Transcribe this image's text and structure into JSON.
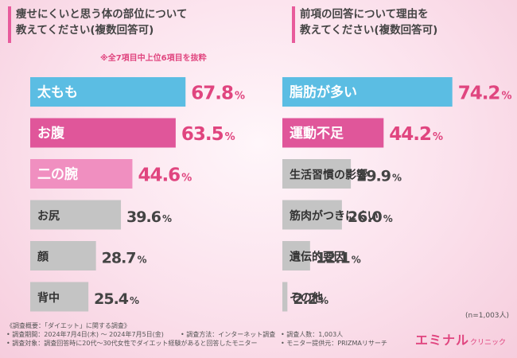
{
  "question_left": "痩せにくいと思う体の部位について\n教えてください(複数回答可)",
  "question_right": "前項の回答について理由を\n教えてください(複数回答可)",
  "note_top": "※全7項目中上位6項目を抜粋",
  "respondents_note": "(n=1,003人)",
  "survey": {
    "title": "《調査概要：「ダイエット」に関する調査》",
    "period": "• 調査期間：2024年7月4日(木) ～ 2024年7月5日(金)",
    "target": "• 調査対象：調査回答時に20代～30代女性でダイエット経験があると回答したモニター",
    "method": "• 調査方法：インターネット調査",
    "count": "• 調査人数：1,003人",
    "provider": "• モニター提供元：PRIZMAリサーチ"
  },
  "logo": {
    "main": "エミナル",
    "sub": "クリニック"
  },
  "colors": {
    "blue": "#5bbde3",
    "pink": "#e0569a",
    "light_pink": "#f08fc0",
    "gray": "#c4c4c4",
    "value_pink": "#e0457f"
  },
  "chart_data": [
    {
      "type": "bar",
      "orientation": "horizontal",
      "title": "痩せにくいと思う体の部位について教えてください(複数回答可)",
      "categories": [
        "太もも",
        "お腹",
        "二の腕",
        "お尻",
        "顔",
        "背中"
      ],
      "values": [
        67.8,
        63.5,
        44.6,
        39.6,
        28.7,
        25.4
      ],
      "value_labels": [
        "67.8",
        "63.5",
        "44.6",
        "39.6",
        "28.7",
        "25.4"
      ],
      "unit": "%",
      "xlim": [
        0,
        100
      ],
      "bar_styles": [
        "blue",
        "pink",
        "light_pink",
        "gray",
        "gray",
        "gray"
      ]
    },
    {
      "type": "bar",
      "orientation": "horizontal",
      "title": "前項の回答について理由を教えてください(複数回答可)",
      "categories": [
        "脂肪が多い",
        "運動不足",
        "生活習慣の影響",
        "筋肉がつきにくい",
        "遺伝的要因",
        "その他"
      ],
      "values": [
        74.2,
        44.2,
        29.9,
        26.0,
        12.1,
        2.2
      ],
      "value_labels": [
        "74.2",
        "44.2",
        "29.9",
        "26.0",
        "12.1",
        "2.2"
      ],
      "unit": "%",
      "xlim": [
        0,
        100
      ],
      "bar_styles": [
        "blue",
        "pink",
        "gray",
        "gray",
        "gray",
        "gray"
      ]
    }
  ]
}
